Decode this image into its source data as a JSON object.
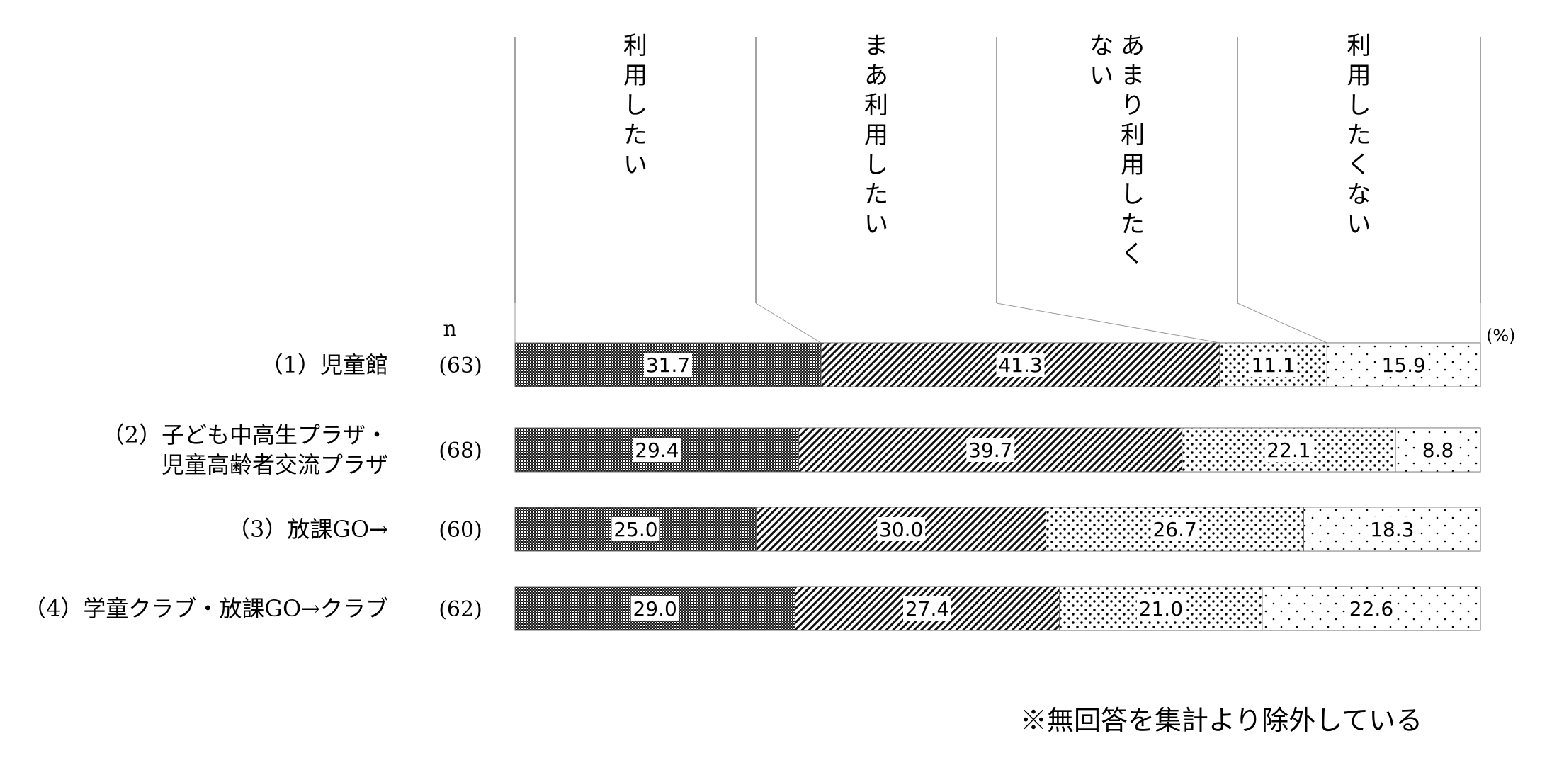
{
  "chart_data": {
    "type": "bar",
    "stacked": true,
    "orientation": "horizontal",
    "normalized_to_100": true,
    "unit": "(%)",
    "n_header": "n",
    "series": [
      {
        "name": "利用したい",
        "values": [
          31.7,
          29.4,
          25.0,
          29.0
        ]
      },
      {
        "name": "まあ利用したい",
        "values": [
          41.3,
          39.7,
          30.0,
          27.4
        ]
      },
      {
        "name": "あまり利用したくない",
        "values": [
          11.1,
          22.1,
          26.7,
          21.0
        ]
      },
      {
        "name": "利用したくない",
        "values": [
          15.9,
          8.8,
          18.3,
          22.6
        ]
      }
    ],
    "categories": [
      {
        "lines": [
          "（1）児童館"
        ],
        "n": "(63)"
      },
      {
        "lines": [
          "（2）子ども中高生プラザ・",
          "児童高齢者交流プラザ"
        ],
        "n": "(68)"
      },
      {
        "lines": [
          "（3）放課GO→"
        ],
        "n": "(60)"
      },
      {
        "lines": [
          "（4）学童クラブ・放課GO→クラブ"
        ],
        "n": "(62)"
      }
    ],
    "header_columns": [
      [
        "利用したい"
      ],
      [
        "まあ利用したい"
      ],
      [
        "ない",
        "あまり利用したく"
      ],
      [
        "利用したくない"
      ]
    ],
    "legend": "column-headers-top",
    "grid": false
  },
  "note": "※無回答を集計より除外している"
}
